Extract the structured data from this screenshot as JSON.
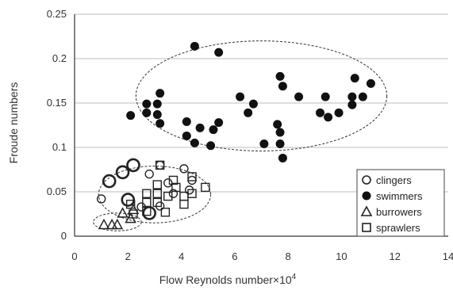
{
  "chart_data": {
    "type": "scatter",
    "xlabel": "Flow Reynolds number",
    "xlabel_suffix": "×10",
    "xlabel_exp": "4",
    "ylabel": "Froude numbers",
    "xlim": [
      0,
      14
    ],
    "ylim": [
      0,
      0.25
    ],
    "xticks": [
      "0",
      "2",
      "4",
      "6",
      "8",
      "10",
      "12",
      "14"
    ],
    "yticks": [
      "0",
      "0.05",
      "0.1",
      "0.15",
      "0.2",
      "0.25"
    ],
    "grid": "horizontal",
    "legend_position": "bottom-right",
    "series": [
      {
        "name": "clingers",
        "marker": "open-circle",
        "points": [
          {
            "x": 1.0,
            "y": 0.042
          },
          {
            "x": 1.3,
            "y": 0.062,
            "large": true
          },
          {
            "x": 1.8,
            "y": 0.072,
            "large": true
          },
          {
            "x": 2.2,
            "y": 0.08,
            "large": true
          },
          {
            "x": 2.0,
            "y": 0.041,
            "large": true
          },
          {
            "x": 2.5,
            "y": 0.033
          },
          {
            "x": 2.8,
            "y": 0.026,
            "large": true
          },
          {
            "x": 2.8,
            "y": 0.07
          },
          {
            "x": 3.2,
            "y": 0.08
          },
          {
            "x": 3.5,
            "y": 0.06
          },
          {
            "x": 3.2,
            "y": 0.034
          },
          {
            "x": 4.1,
            "y": 0.076
          },
          {
            "x": 4.4,
            "y": 0.063
          },
          {
            "x": 4.3,
            "y": 0.052
          },
          {
            "x": 3.7,
            "y": 0.048
          }
        ]
      },
      {
        "name": "swimmers",
        "marker": "filled-circle",
        "points": [
          {
            "x": 2.1,
            "y": 0.136
          },
          {
            "x": 2.7,
            "y": 0.149
          },
          {
            "x": 2.7,
            "y": 0.139
          },
          {
            "x": 3.1,
            "y": 0.149
          },
          {
            "x": 3.2,
            "y": 0.161
          },
          {
            "x": 3.1,
            "y": 0.137
          },
          {
            "x": 3.2,
            "y": 0.127
          },
          {
            "x": 4.2,
            "y": 0.129
          },
          {
            "x": 4.2,
            "y": 0.113
          },
          {
            "x": 4.5,
            "y": 0.105
          },
          {
            "x": 4.7,
            "y": 0.122
          },
          {
            "x": 5.1,
            "y": 0.102
          },
          {
            "x": 5.2,
            "y": 0.12
          },
          {
            "x": 5.4,
            "y": 0.128
          },
          {
            "x": 4.5,
            "y": 0.214
          },
          {
            "x": 5.4,
            "y": 0.207
          },
          {
            "x": 6.2,
            "y": 0.157
          },
          {
            "x": 6.5,
            "y": 0.139
          },
          {
            "x": 6.7,
            "y": 0.149
          },
          {
            "x": 7.1,
            "y": 0.104
          },
          {
            "x": 7.6,
            "y": 0.126
          },
          {
            "x": 7.7,
            "y": 0.18
          },
          {
            "x": 7.8,
            "y": 0.169
          },
          {
            "x": 7.7,
            "y": 0.117
          },
          {
            "x": 7.7,
            "y": 0.104
          },
          {
            "x": 7.8,
            "y": 0.088
          },
          {
            "x": 8.4,
            "y": 0.157
          },
          {
            "x": 9.2,
            "y": 0.139
          },
          {
            "x": 9.4,
            "y": 0.157
          },
          {
            "x": 9.5,
            "y": 0.134
          },
          {
            "x": 9.9,
            "y": 0.139
          },
          {
            "x": 10.4,
            "y": 0.157
          },
          {
            "x": 10.4,
            "y": 0.148
          },
          {
            "x": 10.5,
            "y": 0.178
          },
          {
            "x": 10.8,
            "y": 0.157
          },
          {
            "x": 11.1,
            "y": 0.172
          }
        ]
      },
      {
        "name": "burrowers",
        "marker": "open-triangle",
        "points": [
          {
            "x": 1.1,
            "y": 0.013
          },
          {
            "x": 1.4,
            "y": 0.013
          },
          {
            "x": 1.6,
            "y": 0.013
          },
          {
            "x": 1.8,
            "y": 0.026
          },
          {
            "x": 2.1,
            "y": 0.02
          },
          {
            "x": 2.2,
            "y": 0.03
          }
        ]
      },
      {
        "name": "sprawlers",
        "marker": "open-square",
        "points": [
          {
            "x": 2.1,
            "y": 0.036
          },
          {
            "x": 2.2,
            "y": 0.025
          },
          {
            "x": 2.7,
            "y": 0.048
          },
          {
            "x": 2.7,
            "y": 0.038
          },
          {
            "x": 2.7,
            "y": 0.028
          },
          {
            "x": 3.1,
            "y": 0.058
          },
          {
            "x": 3.1,
            "y": 0.048
          },
          {
            "x": 3.1,
            "y": 0.038
          },
          {
            "x": 3.2,
            "y": 0.08
          },
          {
            "x": 3.4,
            "y": 0.027
          },
          {
            "x": 3.5,
            "y": 0.045
          },
          {
            "x": 3.7,
            "y": 0.063
          },
          {
            "x": 3.8,
            "y": 0.055
          },
          {
            "x": 4.1,
            "y": 0.045
          },
          {
            "x": 4.1,
            "y": 0.036
          },
          {
            "x": 4.4,
            "y": 0.048
          },
          {
            "x": 4.4,
            "y": 0.067
          },
          {
            "x": 4.9,
            "y": 0.055
          }
        ]
      }
    ],
    "groupings": [
      {
        "cx": 7.0,
        "cy": 0.158,
        "rx": 4.7,
        "ry": 0.062
      },
      {
        "cx": 3.0,
        "cy": 0.047,
        "rx": 2.1,
        "ry": 0.032
      },
      {
        "cx": 1.6,
        "cy": 0.016,
        "rx": 0.9,
        "ry": 0.01
      }
    ]
  }
}
